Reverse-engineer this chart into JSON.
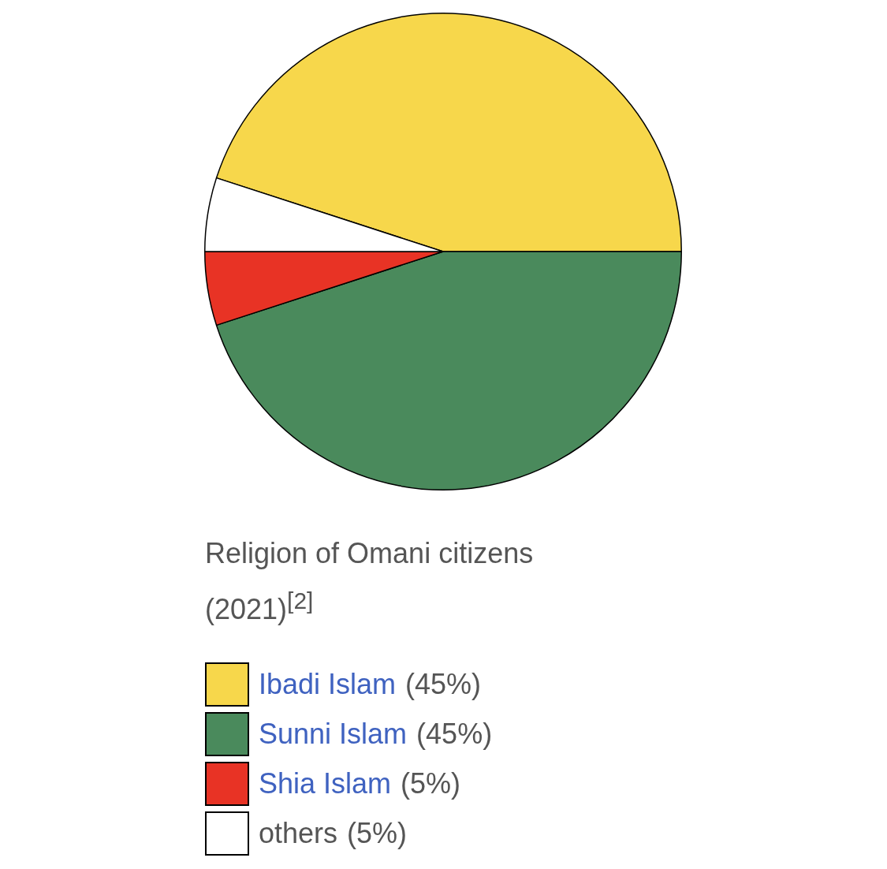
{
  "chart_data": {
    "type": "pie",
    "title": "Religion of Omani citizens (2021)$^{[2]}$",
    "categories": [
      "Ibadi Islam",
      "Sunni Islam",
      "Shia Islam",
      "others"
    ],
    "values": [
      45,
      45,
      5,
      5
    ],
    "value_labels": [
      "(45%)",
      "(45%)",
      "(5%)",
      "(5%)"
    ],
    "colors": [
      "#f7d74b",
      "#4a8a5c",
      "#e83325",
      "#ffffff"
    ],
    "legend": "bottom"
  }
}
